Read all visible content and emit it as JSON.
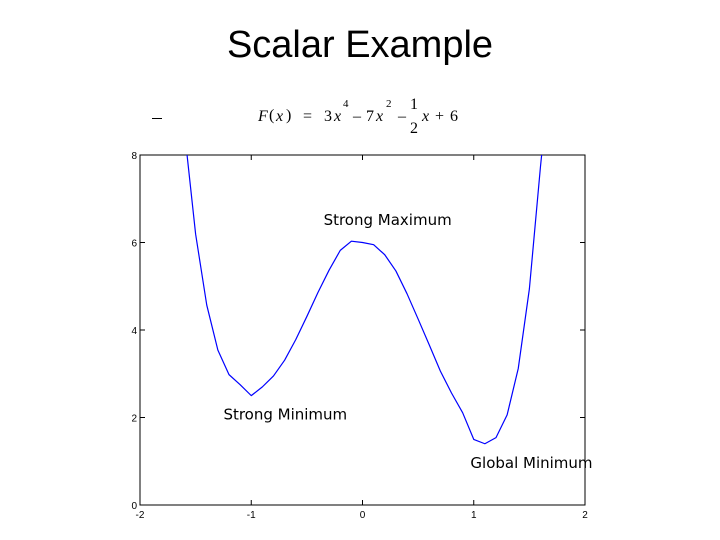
{
  "slide": {
    "title": "Scalar Example"
  },
  "formula": {
    "lhs_F": "F",
    "lhs_x": "x",
    "paren_open": "(",
    "paren_close": ")",
    "equals": "=",
    "t1_coef": "3",
    "t1_var": "x",
    "t1_exp": "4",
    "t2_op": "–",
    "t2_coef": "7",
    "t2_var": "x",
    "t2_exp": "2",
    "t3_op": "–",
    "t3_num": "1",
    "t3_den": "2",
    "t3_var": "x",
    "t4_op": "+",
    "t4_const": "6"
  },
  "chart_data": {
    "type": "line",
    "title": "",
    "xlabel": "",
    "ylabel": "",
    "xlim": [
      -2,
      2
    ],
    "ylim": [
      0,
      8
    ],
    "x_ticks": [
      -2,
      -1,
      0,
      1,
      2
    ],
    "x_tick_labels": [
      "-2",
      "-1",
      "0",
      "1",
      "2"
    ],
    "y_ticks": [
      0,
      2,
      4,
      6,
      8
    ],
    "y_tick_labels": [
      "0",
      "2",
      "4",
      "6",
      "8"
    ],
    "grid": false,
    "line_color": "#0000ff",
    "series": [
      {
        "x": [
          -1.6,
          -1.5,
          -1.4,
          -1.3,
          -1.2,
          -1.1,
          -1.0,
          -0.9,
          -0.8,
          -0.7,
          -0.6,
          -0.5,
          -0.4,
          -0.3,
          -0.2,
          -0.1,
          0.0,
          0.1,
          0.2,
          0.3,
          0.4,
          0.5,
          0.6,
          0.7,
          0.8,
          0.9,
          1.0,
          1.1,
          1.2,
          1.3,
          1.4,
          1.5,
          1.6,
          1.65
        ],
        "y": [
          8.54,
          6.19,
          4.57,
          3.54,
          2.98,
          2.75,
          2.5,
          2.7,
          2.95,
          3.31,
          3.78,
          4.31,
          4.86,
          5.37,
          5.82,
          6.03,
          6.0,
          5.95,
          5.72,
          5.35,
          4.83,
          4.25,
          3.66,
          3.06,
          2.56,
          2.11,
          1.5,
          1.4,
          1.54,
          2.06,
          3.12,
          4.94,
          7.74,
          9.0
        ]
      }
    ],
    "annotations": [
      {
        "text": "Strong Maximum",
        "x": -0.35,
        "y": 6.4
      },
      {
        "text": "Strong Minimum",
        "x": -1.25,
        "y": 1.95
      },
      {
        "text": "Global Minimum",
        "x": 0.97,
        "y": 0.85
      }
    ]
  }
}
